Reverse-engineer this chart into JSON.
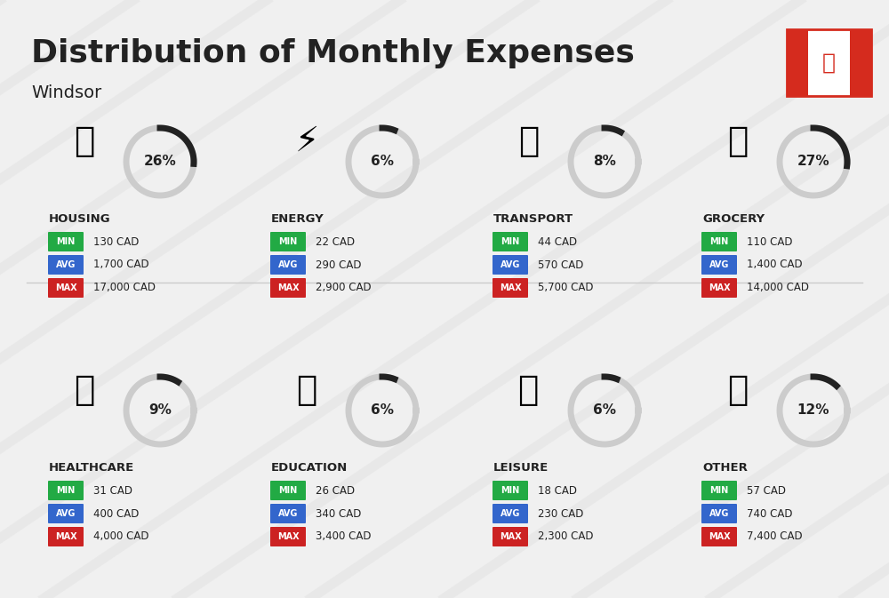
{
  "title": "Distribution of Monthly Expenses",
  "subtitle": "Windsor",
  "bg_color": "#f0f0f0",
  "categories": [
    {
      "name": "HOUSING",
      "pct": 26,
      "icon_color": "#2255aa",
      "min_val": "130 CAD",
      "avg_val": "1,700 CAD",
      "max_val": "17,000 CAD",
      "row": 0,
      "col": 0
    },
    {
      "name": "ENERGY",
      "pct": 6,
      "icon_color": "#f5a623",
      "min_val": "22 CAD",
      "avg_val": "290 CAD",
      "max_val": "2,900 CAD",
      "row": 0,
      "col": 1
    },
    {
      "name": "TRANSPORT",
      "pct": 8,
      "icon_color": "#00aacc",
      "min_val": "44 CAD",
      "avg_val": "570 CAD",
      "max_val": "5,700 CAD",
      "row": 0,
      "col": 2
    },
    {
      "name": "GROCERY",
      "pct": 27,
      "icon_color": "#f5a623",
      "min_val": "110 CAD",
      "avg_val": "1,400 CAD",
      "max_val": "14,000 CAD",
      "row": 0,
      "col": 3
    },
    {
      "name": "HEALTHCARE",
      "pct": 9,
      "icon_color": "#e8336a",
      "min_val": "31 CAD",
      "avg_val": "400 CAD",
      "max_val": "4,000 CAD",
      "row": 1,
      "col": 0
    },
    {
      "name": "EDUCATION",
      "pct": 6,
      "icon_color": "#1a8a3a",
      "min_val": "26 CAD",
      "avg_val": "340 CAD",
      "max_val": "3,400 CAD",
      "row": 1,
      "col": 1
    },
    {
      "name": "LEISURE",
      "pct": 6,
      "icon_color": "#e8336a",
      "min_val": "18 CAD",
      "avg_val": "230 CAD",
      "max_val": "2,300 CAD",
      "row": 1,
      "col": 2
    },
    {
      "name": "OTHER",
      "pct": 12,
      "icon_color": "#c8882a",
      "min_val": "57 CAD",
      "avg_val": "740 CAD",
      "max_val": "7,400 CAD",
      "row": 1,
      "col": 3
    }
  ],
  "min_color": "#22aa44",
  "avg_color": "#3366cc",
  "max_color": "#cc2222",
  "label_color": "#ffffff",
  "text_color": "#222222"
}
